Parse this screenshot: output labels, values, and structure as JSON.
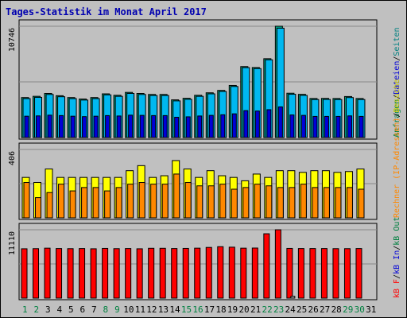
{
  "title": "Tages-Statistik im Monat April 2017",
  "colors": {
    "background": "#c0c0c0",
    "panel": "#c0c0c0",
    "grid": "#888888",
    "title": "#0000b0",
    "hits": "#00a884",
    "files": "#00b8f0",
    "pages": "#0000d8",
    "visits": "#ff8800",
    "sites": "#ffff00",
    "kbin": "#ff0000",
    "kbout": "#b0b0b0",
    "axis_green": "#008040",
    "axis_black": "#000000"
  },
  "chart_data": [
    {
      "type": "bar",
      "panel": "top",
      "ymax_label": "10746",
      "ylim": [
        0,
        10746
      ],
      "right_labels": [
        {
          "text": "Anfragen",
          "color": "#008040"
        },
        {
          "text": "/",
          "color": "#000000"
        },
        {
          "text": "Dateien",
          "color": "#0000d8"
        },
        {
          "text": "/",
          "color": "#000000"
        },
        {
          "text": "Seiten",
          "color": "#008080"
        }
      ],
      "series": [
        {
          "name": "Anfragen",
          "color": "#00a884",
          "values": [
            3860,
            3980,
            4260,
            4040,
            3860,
            3720,
            3860,
            4220,
            4080,
            4360,
            4260,
            4160,
            4160,
            3640,
            3790,
            4080,
            4320,
            4550,
            5030,
            6850,
            6760,
            7610,
            10746,
            4280,
            4170,
            3770,
            3780,
            3770,
            3960,
            3770
          ]
        },
        {
          "name": "Dateien",
          "color": "#00b8f0",
          "values": [
            3760,
            3880,
            4160,
            3940,
            3760,
            3620,
            3760,
            4120,
            3980,
            4260,
            4160,
            4060,
            4060,
            3540,
            3690,
            3980,
            4220,
            4450,
            4930,
            6750,
            6660,
            7510,
            10560,
            4180,
            4070,
            3670,
            3680,
            3670,
            3860,
            3670
          ]
        },
        {
          "name": "Seiten",
          "color": "#0000d8",
          "values": [
            2060,
            2090,
            2160,
            2120,
            2060,
            2020,
            2060,
            2120,
            2080,
            2160,
            2140,
            2120,
            2120,
            1960,
            2000,
            2080,
            2140,
            2200,
            2290,
            2600,
            2560,
            2690,
            2960,
            2180,
            2140,
            2040,
            2040,
            2040,
            2090,
            2040
          ]
        }
      ]
    },
    {
      "type": "bar",
      "panel": "middle",
      "ymax_label": "406",
      "ylim": [
        0,
        406
      ],
      "right_labels": [
        {
          "text": "Rechner (IP-Adressen)",
          "color": "#ff8800"
        },
        {
          "text": "/",
          "color": "#000000"
        },
        {
          "text": "Besuche",
          "color": "#cccc00"
        }
      ],
      "series": [
        {
          "name": "Besuche",
          "color": "#ffff00",
          "values": [
            240,
            210,
            290,
            240,
            240,
            240,
            240,
            240,
            240,
            280,
            310,
            240,
            250,
            340,
            290,
            240,
            280,
            250,
            240,
            220,
            260,
            240,
            280,
            280,
            270,
            280,
            280,
            270,
            275,
            290
          ]
        },
        {
          "name": "Rechner (IP-Adressen)",
          "color": "#ff8800",
          "values": [
            210,
            120,
            150,
            200,
            160,
            180,
            180,
            160,
            180,
            200,
            210,
            200,
            200,
            260,
            210,
            190,
            190,
            200,
            170,
            180,
            200,
            190,
            180,
            180,
            200,
            180,
            180,
            180,
            180,
            170
          ]
        }
      ]
    },
    {
      "type": "bar",
      "panel": "bottom",
      "ymax_label": "11110",
      "ylim": [
        0,
        11110
      ],
      "right_labels": [
        {
          "text": "kB F",
          "color": "#ff0000"
        },
        {
          "text": "/",
          "color": "#000000"
        },
        {
          "text": "kB In",
          "color": "#0000d8"
        },
        {
          "text": "/",
          "color": "#000000"
        },
        {
          "text": "kB Out",
          "color": "#008040"
        }
      ],
      "series": [
        {
          "name": "kB F",
          "color": "#ff0000",
          "values": [
            8020,
            8040,
            8120,
            8060,
            8040,
            8060,
            8020,
            8080,
            8040,
            8060,
            8020,
            8100,
            8100,
            8060,
            8080,
            8120,
            8240,
            8360,
            8280,
            8120,
            8140,
            10460,
            11110,
            8080,
            8060,
            8060,
            8060,
            8040,
            8040,
            8060
          ]
        },
        {
          "name": "kB Out",
          "color": "#b0b0b0",
          "values": [
            0,
            0,
            0,
            0,
            0,
            0,
            0,
            0,
            0,
            0,
            0,
            0,
            0,
            0,
            0,
            0,
            0,
            0,
            0,
            0,
            0,
            0,
            0,
            300,
            0,
            0,
            0,
            0,
            0,
            0
          ]
        }
      ]
    }
  ],
  "x_axis": {
    "days": [
      "1",
      "2",
      "3",
      "4",
      "5",
      "6",
      "7",
      "8",
      "9",
      "10",
      "11",
      "12",
      "13",
      "14",
      "15",
      "16",
      "17",
      "18",
      "19",
      "20",
      "21",
      "22",
      "23",
      "24",
      "25",
      "26",
      "27",
      "28",
      "29",
      "30",
      "31"
    ],
    "weekend_days": [
      "1",
      "2",
      "8",
      "9",
      "15",
      "16",
      "22",
      "23",
      "29",
      "30"
    ]
  }
}
